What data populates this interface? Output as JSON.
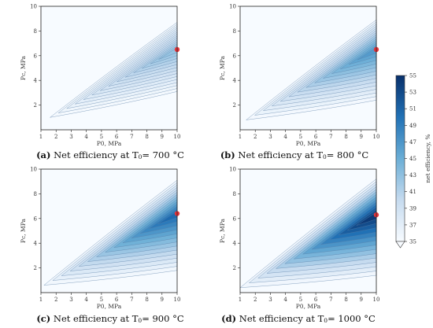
{
  "chart_data": [
    {
      "type": "contour",
      "panel": "a",
      "caption_label": "(a)",
      "caption_text": "Net efficiency at T",
      "caption_sub": "0",
      "caption_suffix": "= 700 °C",
      "xlabel": "P0, MPa",
      "ylabel": "Pc, MPa",
      "xlim": [
        1,
        10
      ],
      "ylim": [
        0,
        10
      ],
      "xticks": [
        "1",
        "2",
        "3",
        "4",
        "5",
        "6",
        "7",
        "8",
        "9",
        "10"
      ],
      "yticks": [
        "2",
        "4",
        "6",
        "8",
        "10"
      ],
      "region_vertex": [
        1.6,
        1.0
      ],
      "upper_edge_end": [
        10,
        8.7
      ],
      "lower_edge_end": [
        10,
        3.1
      ],
      "optimum": [
        10,
        6.5
      ],
      "optimum_color": "#e5343a",
      "max_level": 43
    },
    {
      "type": "contour",
      "panel": "b",
      "caption_label": "(b)",
      "caption_text": "Net efficiency at T",
      "caption_sub": "0",
      "caption_suffix": "= 800 °C",
      "xlabel": "P0, MPa",
      "ylabel": "Pc, MPa",
      "xlim": [
        1,
        10
      ],
      "ylim": [
        0,
        10
      ],
      "xticks": [
        "1",
        "2",
        "3",
        "4",
        "5",
        "6",
        "7",
        "8",
        "9",
        "10"
      ],
      "yticks": [
        "2",
        "4",
        "6",
        "8",
        "10"
      ],
      "region_vertex": [
        1.4,
        0.8
      ],
      "upper_edge_end": [
        10,
        8.9
      ],
      "lower_edge_end": [
        10,
        2.4
      ],
      "optimum": [
        10,
        6.5
      ],
      "optimum_color": "#e5343a",
      "max_level": 47
    },
    {
      "type": "contour",
      "panel": "c",
      "caption_label": "(c)",
      "caption_text": "Net efficiency at T",
      "caption_sub": "0",
      "caption_suffix": "= 900 °C",
      "xlabel": "P0, MPa",
      "ylabel": "Pc, MPa",
      "xlim": [
        1,
        10
      ],
      "ylim": [
        0,
        10
      ],
      "xticks": [
        "1",
        "2",
        "3",
        "4",
        "5",
        "6",
        "7",
        "8",
        "9",
        "10"
      ],
      "yticks": [
        "2",
        "4",
        "6",
        "8",
        "10"
      ],
      "region_vertex": [
        1.2,
        0.6
      ],
      "upper_edge_end": [
        10,
        9.1
      ],
      "lower_edge_end": [
        10,
        1.8
      ],
      "optimum": [
        10,
        6.4
      ],
      "optimum_color": "#e5343a",
      "max_level": 51
    },
    {
      "type": "contour",
      "panel": "d",
      "caption_label": "(d)",
      "caption_text": "Net efficiency at T",
      "caption_sub": "0",
      "caption_suffix": "= 1000 °C",
      "xlabel": "P0, MPa",
      "ylabel": "Pc, MPa",
      "xlim": [
        1,
        10
      ],
      "ylim": [
        0,
        10
      ],
      "xticks": [
        "1",
        "2",
        "3",
        "4",
        "5",
        "6",
        "7",
        "8",
        "9",
        "10"
      ],
      "yticks": [
        "2",
        "4",
        "6",
        "8",
        "10"
      ],
      "region_vertex": [
        1.0,
        0.4
      ],
      "upper_edge_end": [
        10,
        9.2
      ],
      "lower_edge_end": [
        10,
        1.4
      ],
      "optimum": [
        10,
        6.3
      ],
      "optimum_color": "#e5343a",
      "max_level": 55
    }
  ],
  "colorbar": {
    "label": "net efficiency, %",
    "ticks": [
      "55",
      "53",
      "51",
      "49",
      "47",
      "45",
      "43",
      "41",
      "39",
      "37",
      "35"
    ],
    "min": 35,
    "max": 55,
    "color_low": "#f7fbff",
    "color_high": "#08306b"
  }
}
